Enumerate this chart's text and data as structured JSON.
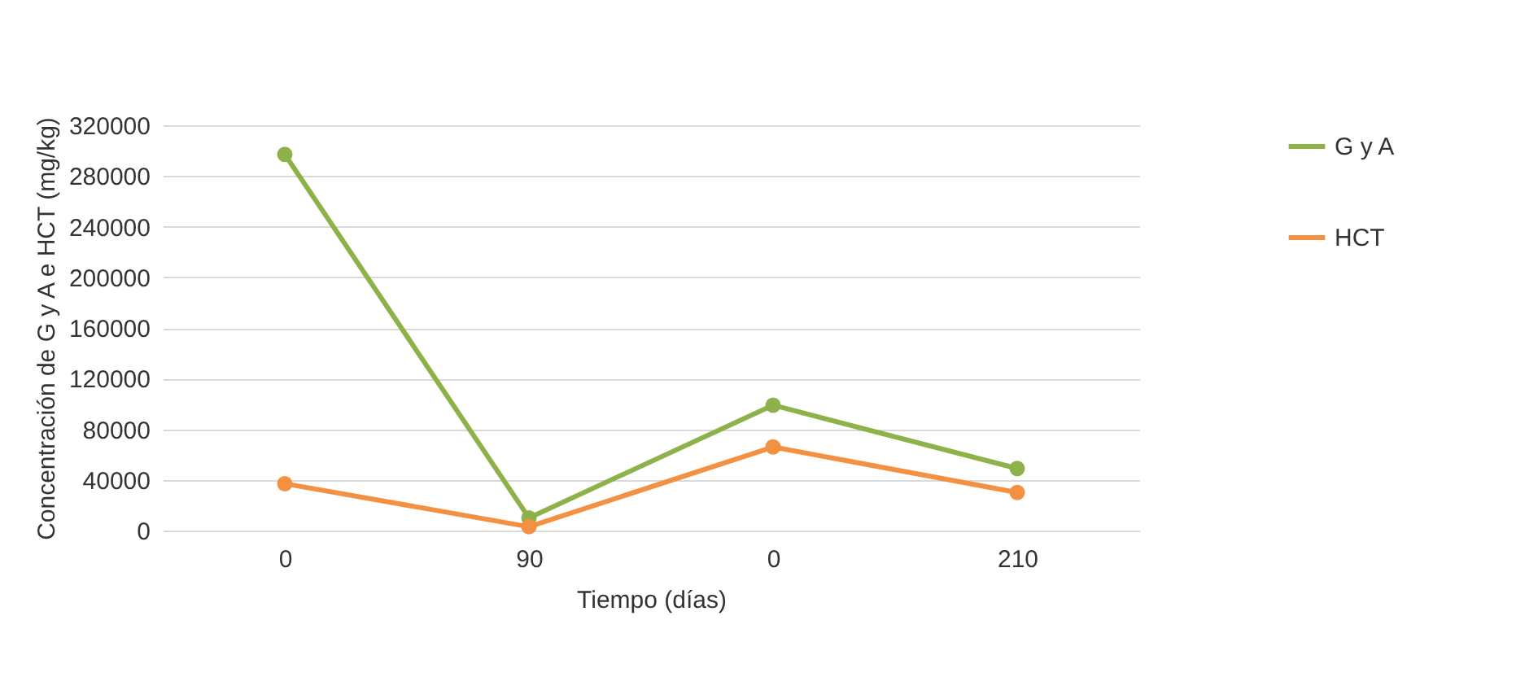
{
  "chart_data": {
    "type": "line",
    "xlabel": "Tiempo (días)",
    "ylabel": "Concentración de G y A e HCT (mg/kg)",
    "categories": [
      "0",
      "90",
      "0",
      "210"
    ],
    "series": [
      {
        "name": "G y A",
        "color": "#8db24a",
        "values": [
          297000,
          10000,
          99000,
          49000
        ]
      },
      {
        "name": "HCT",
        "color": "#f39041",
        "values": [
          37000,
          3000,
          66000,
          30000
        ]
      }
    ],
    "ylim": [
      0,
      320000
    ],
    "yticks": [
      0,
      40000,
      80000,
      120000,
      160000,
      200000,
      240000,
      280000,
      320000
    ],
    "grid": "y",
    "legend": "right",
    "marker": "circle",
    "line_style": "solid"
  }
}
